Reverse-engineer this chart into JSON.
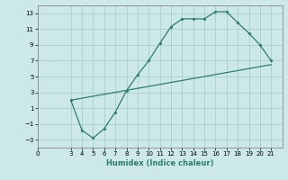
{
  "xlabel": "Humidex (Indice chaleur)",
  "bg_color": "#cce8e8",
  "grid_color": "#aacfcf",
  "line_color": "#2d7d6e",
  "xlim": [
    0,
    22
  ],
  "ylim": [
    -4,
    14
  ],
  "xticks": [
    0,
    3,
    4,
    5,
    6,
    7,
    8,
    9,
    10,
    11,
    12,
    13,
    14,
    15,
    16,
    17,
    18,
    19,
    20,
    21
  ],
  "yticks": [
    -3,
    -1,
    1,
    3,
    5,
    7,
    9,
    11,
    13
  ],
  "upper_line": {
    "x": [
      3,
      4,
      5,
      6,
      7,
      8,
      9,
      10,
      11,
      12,
      13,
      14,
      15,
      16,
      17,
      18,
      19,
      20,
      21
    ],
    "y": [
      2,
      -1.8,
      -2.8,
      -1.6,
      0.5,
      3.2,
      5.2,
      7.0,
      9.2,
      11.3,
      12.3,
      12.3,
      12.3,
      13.2,
      13.2,
      11.8,
      10.5,
      9.0,
      7.0
    ]
  },
  "lower_line": {
    "x": [
      3,
      21
    ],
    "y": [
      2,
      6.5
    ]
  }
}
